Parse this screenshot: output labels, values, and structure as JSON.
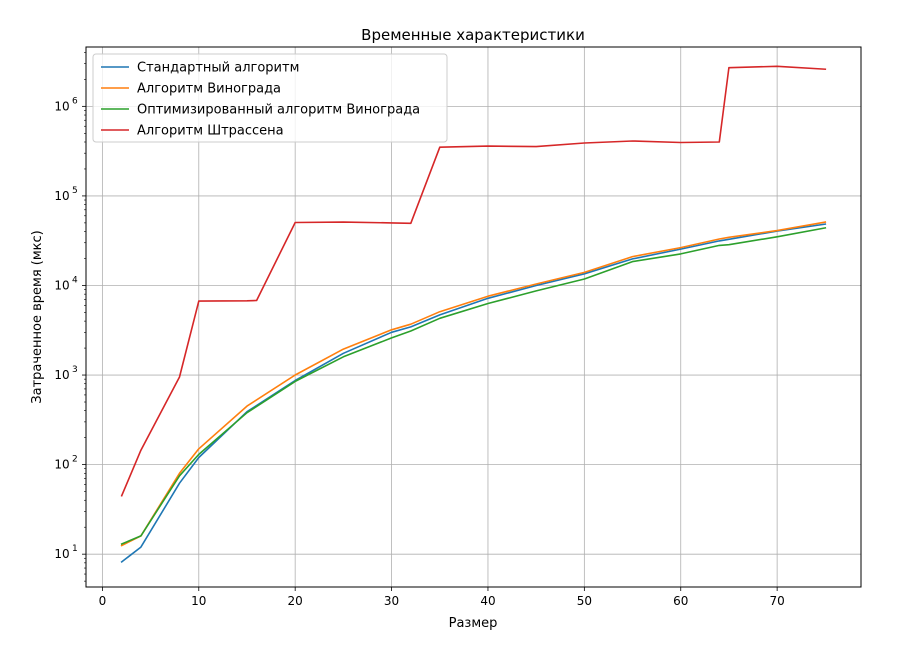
{
  "chart_data": {
    "type": "line",
    "title": "Временные характеристики",
    "xlabel": "Размер",
    "ylabel": "Затраченное время (мкс)",
    "yscale": "log",
    "xlim": [
      -1.7,
      78.7
    ],
    "ylim": [
      4.3,
      4600000
    ],
    "grid": true,
    "legend_position": "top-left",
    "xticks": [
      0,
      10,
      20,
      30,
      40,
      50,
      60,
      70
    ],
    "xtick_labels": [
      "0",
      "10",
      "20",
      "30",
      "40",
      "50",
      "60",
      "70"
    ],
    "yticks": [
      10,
      100,
      1000,
      10000,
      100000,
      1000000
    ],
    "ytick_base": "10",
    "ytick_exponents": [
      "1",
      "2",
      "3",
      "4",
      "5",
      "6"
    ],
    "series": [
      {
        "name": "Стандартный алгоритм",
        "color": "#1f77b4",
        "x": [
          2,
          4,
          8,
          10,
          15,
          20,
          25,
          30,
          32,
          35,
          40,
          45,
          50,
          55,
          60,
          64,
          65,
          70,
          75
        ],
        "y": [
          8.2,
          12,
          62,
          120,
          390,
          870,
          1750,
          3000,
          3450,
          4700,
          7200,
          10000,
          13500,
          19800,
          25500,
          31500,
          32800,
          40500,
          48500
        ]
      },
      {
        "name": "Алгоритм Винограда",
        "color": "#ff7f0e",
        "x": [
          2,
          4,
          8,
          10,
          15,
          20,
          25,
          30,
          32,
          35,
          40,
          45,
          50,
          55,
          60,
          64,
          65,
          70,
          75
        ],
        "y": [
          12.5,
          16,
          80,
          150,
          450,
          1000,
          1950,
          3200,
          3700,
          5100,
          7600,
          10400,
          14000,
          21000,
          26500,
          33000,
          34500,
          41000,
          51000
        ]
      },
      {
        "name": "Оптимизированный алгоритм Винограда",
        "color": "#2ca02c",
        "x": [
          2,
          4,
          8,
          10,
          15,
          20,
          25,
          30,
          32,
          35,
          40,
          45,
          50,
          55,
          60,
          64,
          65,
          70,
          75
        ],
        "y": [
          13,
          16,
          75,
          130,
          380,
          850,
          1600,
          2600,
          3100,
          4300,
          6300,
          8700,
          11800,
          18500,
          22500,
          28000,
          28500,
          35000,
          44000
        ]
      },
      {
        "name": "Алгоритм Штрассена",
        "color": "#d62728",
        "x": [
          2,
          4,
          8,
          10,
          15,
          16,
          20,
          25,
          30,
          32,
          35,
          40,
          45,
          50,
          55,
          60,
          64,
          65,
          70,
          75
        ],
        "y": [
          45,
          145,
          950,
          6700,
          6750,
          6800,
          50500,
          51000,
          50000,
          49500,
          350000,
          360000,
          355000,
          390000,
          410000,
          395000,
          400000,
          2700000,
          2800000,
          2600000
        ]
      }
    ]
  }
}
